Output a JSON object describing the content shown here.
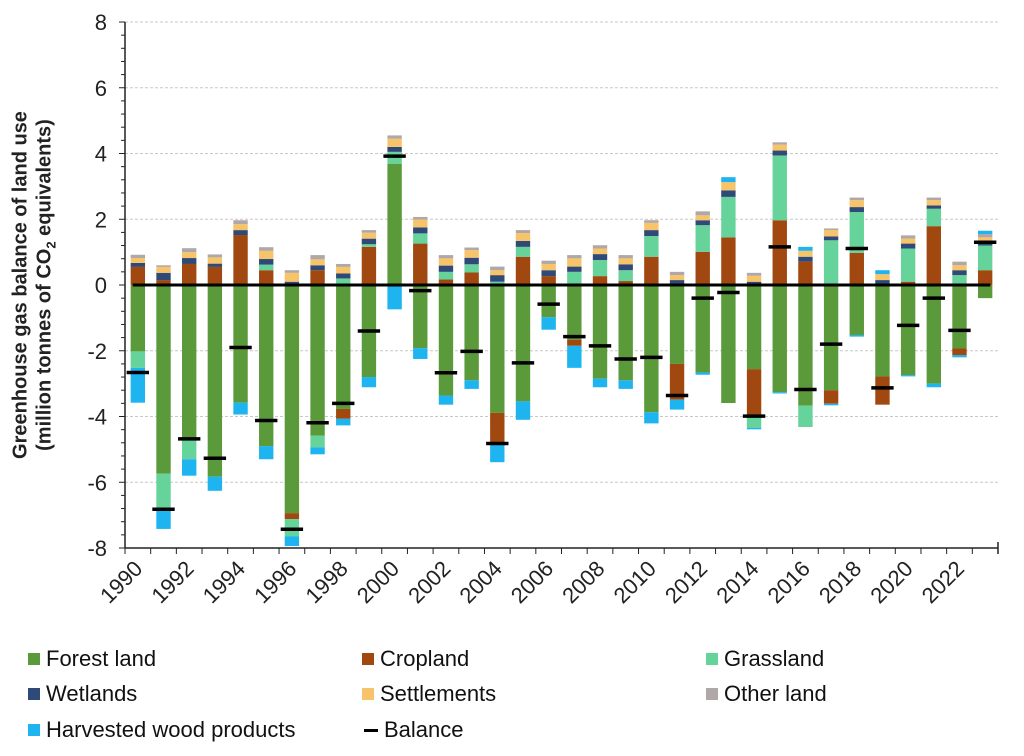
{
  "chart_data": {
    "type": "bar",
    "stacked": true,
    "title": "",
    "ylabel_line1": "Greenhouse gas balance of land use",
    "ylabel_line2_prefix": "(million tonnes of CO",
    "ylabel_line2_sub": "2",
    "ylabel_line2_suffix": " equivalents)",
    "xlabel": "",
    "ylim": [
      -8,
      8
    ],
    "yticks": [
      -8,
      -6,
      -4,
      -2,
      0,
      2,
      4,
      6,
      8
    ],
    "grid": true,
    "legend_position": "bottom",
    "categories": [
      "1990",
      "1991",
      "1992",
      "1993",
      "1994",
      "1995",
      "1996",
      "1997",
      "1998",
      "1999",
      "2000",
      "2001",
      "2002",
      "2003",
      "2004",
      "2005",
      "2006",
      "2007",
      "2008",
      "2009",
      "2010",
      "2011",
      "2012",
      "2013",
      "2014",
      "2015",
      "2016",
      "2017",
      "2018",
      "2019",
      "2020",
      "2021",
      "2022",
      "2023"
    ],
    "xtick_labels": [
      "1990",
      "1992",
      "1994",
      "1996",
      "1998",
      "2000",
      "2002",
      "2004",
      "2006",
      "2008",
      "2010",
      "2012",
      "2014",
      "2016",
      "2018",
      "2020",
      "2022"
    ],
    "series": [
      {
        "name": "Forest land",
        "color": "#5b9a3a",
        "values": [
          -2.02,
          -5.74,
          -4.7,
          -5.83,
          -3.58,
          -4.9,
          -6.94,
          -4.58,
          -3.77,
          -2.8,
          3.69,
          -1.92,
          -3.36,
          -2.9,
          -3.89,
          -3.54,
          -0.98,
          -1.67,
          -2.85,
          -2.9,
          -3.87,
          -2.4,
          -2.66,
          -3.59,
          -2.56,
          -3.26,
          -3.67,
          -3.2,
          -1.52,
          -2.78,
          -2.74,
          -3.0,
          -1.93,
          -0.4
        ]
      },
      {
        "name": "Cropland",
        "color": "#a0480f",
        "values": [
          0.55,
          0.15,
          0.64,
          0.55,
          1.52,
          0.45,
          -0.18,
          0.45,
          -0.3,
          1.16,
          0,
          1.26,
          0.17,
          0.38,
          -0.91,
          0.86,
          0.27,
          -0.18,
          0.27,
          0.12,
          0.86,
          -1.09,
          1.01,
          1.45,
          -1.43,
          1.97,
          0.71,
          -0.41,
          0.98,
          -0.86,
          0.1,
          1.79,
          -0.2,
          0.45
        ]
      },
      {
        "name": "Grassland",
        "color": "#66d39a",
        "values": [
          -0.5,
          -1.1,
          -0.6,
          0,
          0,
          0.17,
          -0.52,
          -0.36,
          0.2,
          0.08,
          0.36,
          0.31,
          0.23,
          0.25,
          0.1,
          0.3,
          0,
          0.4,
          0.49,
          0.33,
          0.63,
          0,
          0.81,
          1.23,
          -0.35,
          1.97,
          -0.65,
          1.36,
          1.24,
          0,
          1.01,
          0.53,
          0.3,
          0.75
        ]
      },
      {
        "name": "Wetlands",
        "color": "#2f4a78",
        "values": [
          0.12,
          0.22,
          0.18,
          0.1,
          0.15,
          0.17,
          0.1,
          0.15,
          0.15,
          0.17,
          0.15,
          0.18,
          0.19,
          0.2,
          0.2,
          0.18,
          0.18,
          0.16,
          0.18,
          0.18,
          0.18,
          0.15,
          0.15,
          0.2,
          0.1,
          0.15,
          0.15,
          0.12,
          0.15,
          0.15,
          0.15,
          0.1,
          0.15,
          0.1
        ]
      },
      {
        "name": "Settlements",
        "color": "#f8c46a",
        "values": [
          0.15,
          0.18,
          0.18,
          0.19,
          0.18,
          0.25,
          0.27,
          0.18,
          0.2,
          0.18,
          0.25,
          0.24,
          0.22,
          0.23,
          0.15,
          0.24,
          0.19,
          0.25,
          0.17,
          0.18,
          0.22,
          0.15,
          0.15,
          0.25,
          0.18,
          0.18,
          0.18,
          0.19,
          0.21,
          0.18,
          0.15,
          0.16,
          0.15,
          0.15
        ]
      },
      {
        "name": "Other land",
        "color": "#b0a8a8",
        "values": [
          0.1,
          0.05,
          0.12,
          0.09,
          0.12,
          0.11,
          0.08,
          0.13,
          0.09,
          0.08,
          0.1,
          0.08,
          0.1,
          0.08,
          0.11,
          0.09,
          0.1,
          0.1,
          0.1,
          0.1,
          0.08,
          0.1,
          0.12,
          0,
          0.09,
          0.07,
          0,
          0.05,
          0.08,
          0,
          0.1,
          0.08,
          0.11,
          0.1
        ]
      },
      {
        "name": "Harvested wood products",
        "color": "#1db4f0",
        "values": [
          -1.06,
          -0.58,
          -0.5,
          -0.43,
          -0.36,
          -0.4,
          -0.3,
          -0.21,
          -0.2,
          -0.31,
          -0.74,
          -0.33,
          -0.28,
          -0.26,
          -0.59,
          -0.56,
          -0.38,
          -0.67,
          -0.26,
          -0.26,
          -0.34,
          -0.3,
          -0.07,
          0.15,
          -0.05,
          -0.04,
          0.12,
          -0.05,
          -0.05,
          0.12,
          -0.04,
          -0.11,
          -0.07,
          0.1
        ]
      }
    ],
    "balance": {
      "name": "Balance",
      "color": "#000000",
      "values": [
        -2.66,
        -6.82,
        -4.68,
        -5.27,
        -1.9,
        -4.12,
        -7.43,
        -4.19,
        -3.6,
        -1.4,
        3.92,
        -0.17,
        -2.67,
        -2.02,
        -4.82,
        -2.37,
        -0.58,
        -1.57,
        -1.85,
        -2.25,
        -2.2,
        -3.36,
        -0.4,
        -0.23,
        -3.99,
        1.16,
        -3.18,
        -1.8,
        1.11,
        -3.13,
        -1.23,
        -0.4,
        -1.38,
        1.3
      ]
    }
  },
  "legend": [
    {
      "label": "Forest land",
      "color": "#5b9a3a",
      "kind": "box"
    },
    {
      "label": "Cropland",
      "color": "#a0480f",
      "kind": "box"
    },
    {
      "label": "Grassland",
      "color": "#66d39a",
      "kind": "box"
    },
    {
      "label": "Wetlands",
      "color": "#2f4a78",
      "kind": "box"
    },
    {
      "label": "Settlements",
      "color": "#f8c46a",
      "kind": "box"
    },
    {
      "label": "Other land",
      "color": "#b0a8a8",
      "kind": "box"
    },
    {
      "label": "Harvested wood products",
      "color": "#1db4f0",
      "kind": "box"
    },
    {
      "label": "Balance",
      "color": "#000000",
      "kind": "line"
    }
  ]
}
